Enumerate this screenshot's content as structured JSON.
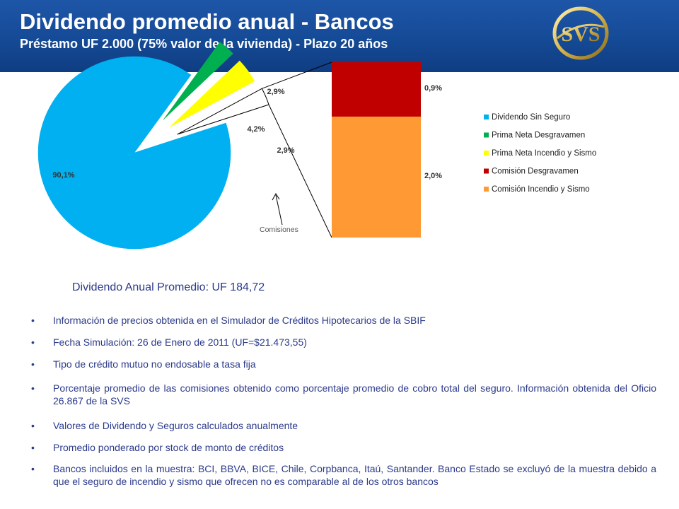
{
  "header": {
    "title": "Dividendo promedio anual - Bancos",
    "subtitle": "Préstamo UF 2.000 (75% valor de la vivienda) - Plazo 20 años",
    "logo_text": "SVS"
  },
  "chart_data": {
    "type": "pie",
    "slices": [
      {
        "label": "Dividendo Sin Seguro",
        "value": 90.1,
        "value_label": "90,1%",
        "color": "#00b0f0"
      },
      {
        "label": "Prima Neta Desgravamen",
        "value": 2.9,
        "value_label": "2,9%",
        "color": "#00b050"
      },
      {
        "label": "Prima Neta Incendio y Sismo",
        "value": 4.2,
        "value_label": "4,2%",
        "color": "#ffff00"
      },
      {
        "label": "Comisiones",
        "value": 2.9,
        "value_label": "2,9%",
        "color": "#ffffff"
      }
    ],
    "breakdown": {
      "of": "Comisiones",
      "type": "stacked-bar",
      "segments": [
        {
          "label": "Comisión Desgravamen",
          "value": 0.9,
          "value_label": "0,9%",
          "color": "#c00000"
        },
        {
          "label": "Comisión Incendio y Sismo",
          "value": 2.0,
          "value_label": "2,0%",
          "color": "#ff9933"
        }
      ]
    },
    "legend": {
      "position": "right",
      "entries": [
        {
          "label": "Dividendo Sin Seguro",
          "color": "#00b0f0"
        },
        {
          "label": "Prima Neta Desgravamen",
          "color": "#00b050"
        },
        {
          "label": "Prima Neta Incendio y Sismo",
          "color": "#ffff00"
        },
        {
          "label": "Comisión Desgravamen",
          "color": "#c00000"
        },
        {
          "label": "Comisión Incendio y Sismo",
          "color": "#ff9933"
        }
      ]
    },
    "annotation": "Comisiones"
  },
  "summary": "Dividendo Anual Promedio: UF 184,72",
  "notes": {
    "bullet": "•",
    "items": [
      "Información de precios obtenida en el Simulador de Créditos Hipotecarios de la SBIF",
      "Fecha Simulación: 26 de Enero de 2011 (UF=$21.473,55)",
      "Tipo de crédito mutuo no endosable a tasa fija",
      "Porcentaje promedio de las comisiones obtenido como porcentaje promedio de cobro total del seguro. Información obtenida del Oficio 26.867 de la SVS",
      "Valores de Dividendo y Seguros calculados anualmente",
      "Promedio ponderado por stock de monto de créditos",
      "Bancos incluidos en la muestra: BCI, BBVA, BICE, Chile, Corpbanca, Itaú, Santander. Banco Estado se excluyó de la muestra debido a que el seguro de incendio y sismo que ofrecen no es comparable al de los otros bancos"
    ]
  },
  "colors": {
    "header_bg": "#154a96",
    "text_blue": "#2b3a8a"
  }
}
